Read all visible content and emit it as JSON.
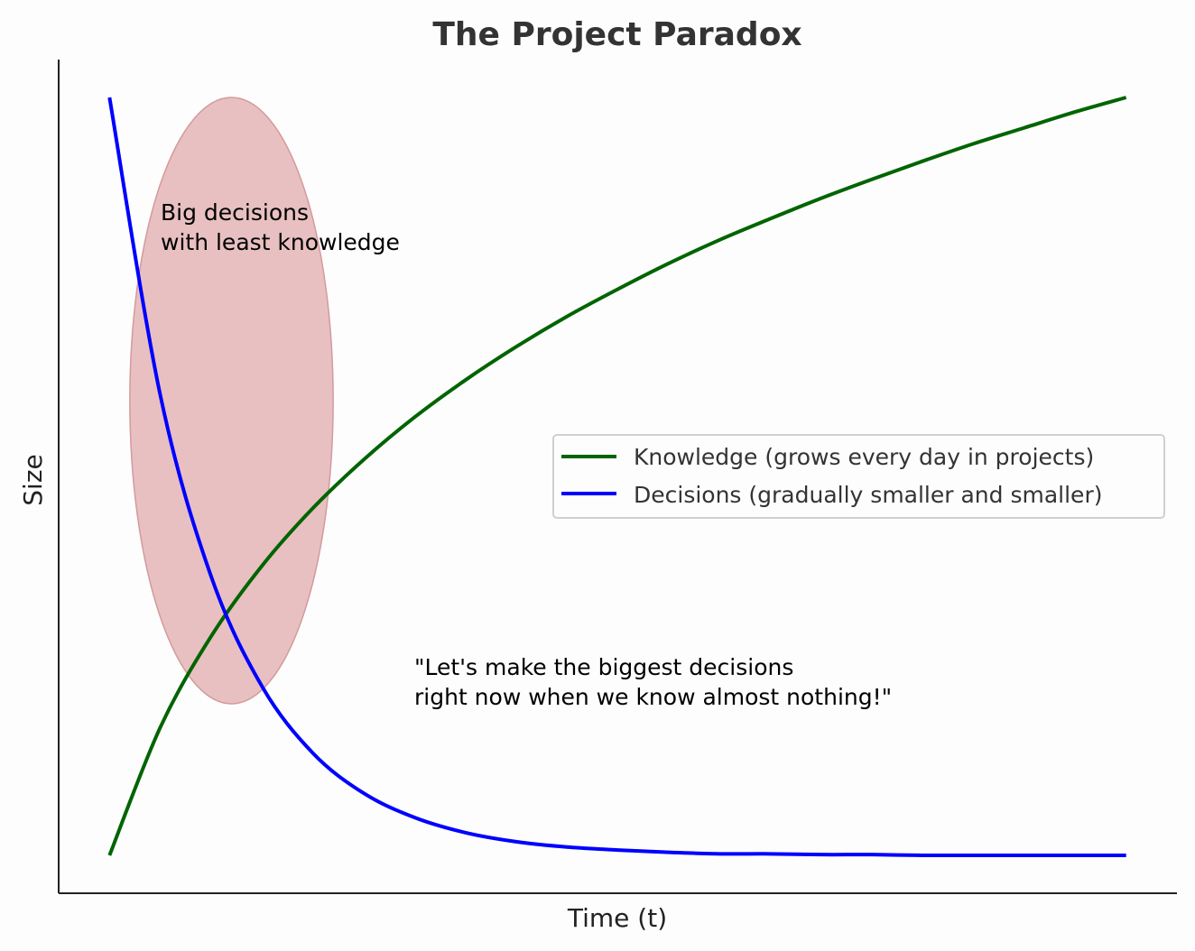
{
  "chart_data": {
    "type": "line",
    "title": "The Project Paradox",
    "xlabel": "Time (t)",
    "ylabel": "Size",
    "xlim": [
      -0.05,
      1.05
    ],
    "ylim": [
      -0.05,
      1.05
    ],
    "grid": false,
    "ticks_visible": false,
    "legend_placement": "center-right",
    "x": [
      0,
      0.05,
      0.1,
      0.15,
      0.2,
      0.25,
      0.3,
      0.35,
      0.4,
      0.45,
      0.5,
      0.55,
      0.6,
      0.65,
      0.7,
      0.75,
      0.8,
      0.85,
      0.9,
      0.95,
      1
    ],
    "series": [
      {
        "name": "Knowledge (grows every day in projects)",
        "color": "#006400",
        "values": [
          0,
          0.169,
          0.289,
          0.382,
          0.458,
          0.522,
          0.578,
          0.627,
          0.671,
          0.711,
          0.747,
          0.781,
          0.812,
          0.84,
          0.867,
          0.892,
          0.916,
          0.939,
          0.96,
          0.981,
          1
        ]
      },
      {
        "name": "Decisions (gradually smaller and smaller)",
        "color": "#0000ff",
        "values": [
          1,
          0.607,
          0.368,
          0.223,
          0.135,
          0.082,
          0.05,
          0.03,
          0.018,
          0.011,
          0.007,
          0.004,
          0.002,
          0.002,
          0.001,
          0.001,
          0,
          0,
          0,
          0,
          0
        ]
      }
    ],
    "highlight": {
      "shape": "ellipse",
      "fill": "#e8c0c1",
      "edge": "#d49a9c"
    },
    "annotations": [
      {
        "lines": [
          "Big decisions",
          "with least knowledge"
        ]
      },
      {
        "lines": [
          "\"Let's make the biggest decisions",
          "right now when we know almost nothing!\""
        ]
      }
    ]
  }
}
